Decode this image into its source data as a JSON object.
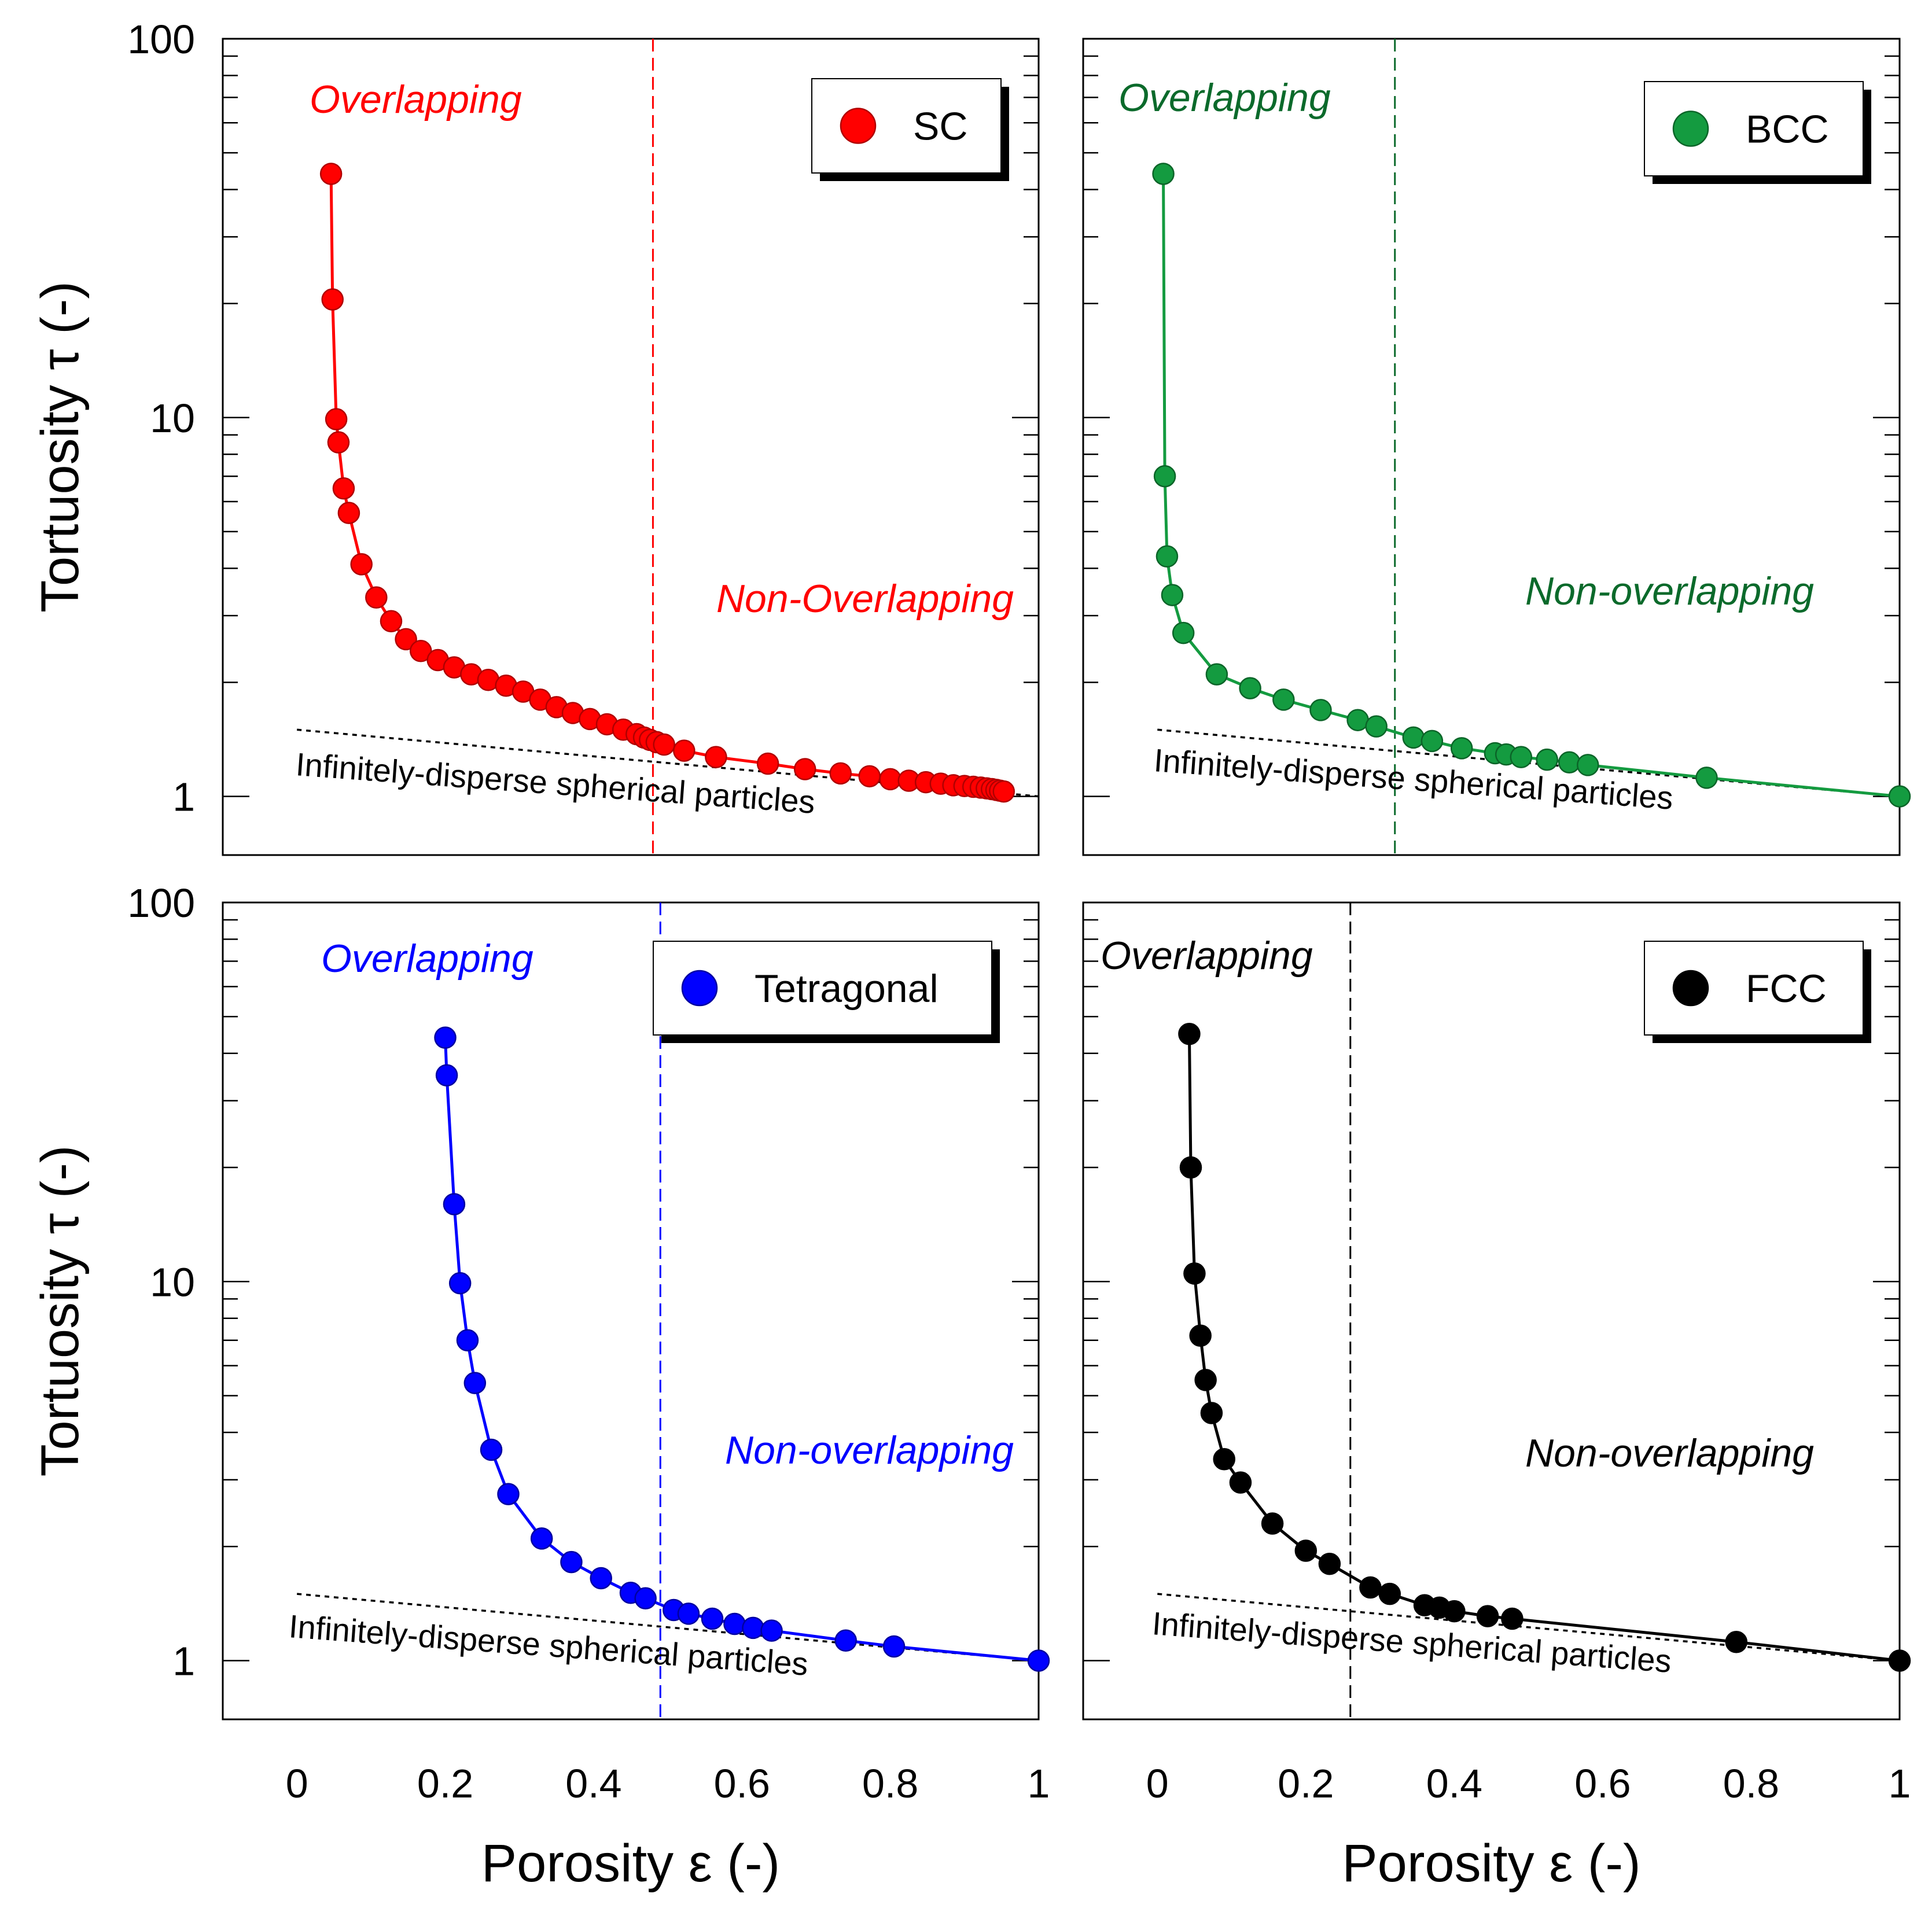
{
  "chart_data": [
    {
      "type": "scatter",
      "id": "sc",
      "legend": "SC",
      "color": "#ff0000",
      "edge_color": "#b00000",
      "x_threshold": 0.48,
      "overlap_label": "Overlapping",
      "nonoverlap_label": "Non-Overlapping",
      "ref_label": "Infinitely-disperse spherical particles",
      "x": [
        0.046,
        0.048,
        0.053,
        0.056,
        0.063,
        0.07,
        0.087,
        0.107,
        0.127,
        0.147,
        0.167,
        0.19,
        0.212,
        0.235,
        0.258,
        0.282,
        0.305,
        0.328,
        0.35,
        0.372,
        0.395,
        0.418,
        0.44,
        0.458,
        0.468,
        0.476,
        0.485,
        0.495,
        0.522,
        0.565,
        0.635,
        0.685,
        0.733,
        0.772,
        0.8,
        0.825,
        0.848,
        0.868,
        0.885,
        0.9,
        0.912,
        0.922,
        0.93,
        0.937,
        0.943,
        0.948,
        0.953
      ],
      "values": [
        44,
        20.5,
        9.9,
        8.6,
        6.5,
        5.6,
        4.1,
        3.35,
        2.9,
        2.6,
        2.42,
        2.29,
        2.19,
        2.1,
        2.03,
        1.96,
        1.89,
        1.8,
        1.72,
        1.66,
        1.6,
        1.55,
        1.5,
        1.46,
        1.43,
        1.41,
        1.39,
        1.37,
        1.32,
        1.27,
        1.22,
        1.18,
        1.15,
        1.13,
        1.11,
        1.1,
        1.09,
        1.08,
        1.07,
        1.065,
        1.06,
        1.055,
        1.05,
        1.045,
        1.04,
        1.035,
        1.03
      ]
    },
    {
      "type": "scatter",
      "id": "bcc",
      "legend": "BCC",
      "color": "#149b40",
      "edge_color": "#0b6428",
      "label_color": "#0b6a2b",
      "x_threshold": 0.32,
      "overlap_label": "Overlapping",
      "nonoverlap_label": "Non-overlapping",
      "ref_label": "Infinitely-disperse spherical particles",
      "x": [
        0.008,
        0.01,
        0.013,
        0.02,
        0.035,
        0.08,
        0.125,
        0.17,
        0.22,
        0.27,
        0.295,
        0.345,
        0.37,
        0.41,
        0.455,
        0.47,
        0.49,
        0.525,
        0.555,
        0.58,
        0.74,
        1.0
      ],
      "values": [
        44,
        7.0,
        4.3,
        3.4,
        2.7,
        2.1,
        1.93,
        1.8,
        1.69,
        1.59,
        1.53,
        1.43,
        1.4,
        1.34,
        1.3,
        1.29,
        1.27,
        1.25,
        1.23,
        1.21,
        1.12,
        1.0
      ]
    },
    {
      "type": "scatter",
      "id": "tetragonal",
      "legend": "Tetragonal",
      "color": "#0000ff",
      "edge_color": "#0000a0",
      "x_threshold": 0.49,
      "overlap_label": "Overlapping",
      "nonoverlap_label": "Non-overlapping",
      "ref_label": "Infinitely-disperse spherical particles",
      "x": [
        0.2,
        0.202,
        0.212,
        0.22,
        0.23,
        0.24,
        0.262,
        0.285,
        0.33,
        0.37,
        0.41,
        0.45,
        0.47,
        0.508,
        0.528,
        0.56,
        0.59,
        0.615,
        0.64,
        0.74,
        0.805,
        1.0
      ],
      "values": [
        44,
        35,
        16,
        9.9,
        7.0,
        5.4,
        3.6,
        2.75,
        2.1,
        1.82,
        1.65,
        1.51,
        1.46,
        1.36,
        1.33,
        1.29,
        1.25,
        1.22,
        1.2,
        1.13,
        1.09,
        1.0
      ]
    },
    {
      "type": "scatter",
      "id": "fcc",
      "legend": "FCC",
      "color": "#000000",
      "edge_color": "#000000",
      "x_threshold": 0.26,
      "overlap_label": "Overlapping",
      "nonoverlap_label": "Non-overlapping",
      "ref_label": "Infinitely-disperse spherical particles",
      "x": [
        0.043,
        0.045,
        0.05,
        0.058,
        0.065,
        0.073,
        0.09,
        0.112,
        0.155,
        0.2,
        0.232,
        0.287,
        0.313,
        0.36,
        0.38,
        0.4,
        0.445,
        0.478,
        0.78,
        1.0
      ],
      "values": [
        45,
        20,
        10.5,
        7.2,
        5.5,
        4.5,
        3.4,
        2.95,
        2.3,
        1.95,
        1.8,
        1.56,
        1.5,
        1.4,
        1.38,
        1.35,
        1.31,
        1.29,
        1.12,
        1.0
      ]
    }
  ],
  "axes": {
    "ylabel": "Tortuosity τ (-)",
    "xlabel": "Porosity ε (-)",
    "xlim": [
      -0.1,
      1.0
    ],
    "ylim": [
      0.7,
      100
    ],
    "x_ticks": [
      "0",
      "0.2",
      "0.4",
      "0.6",
      "0.8",
      "1"
    ],
    "y_ticks": [
      "1",
      "10",
      "100"
    ],
    "y_scale": "log"
  }
}
